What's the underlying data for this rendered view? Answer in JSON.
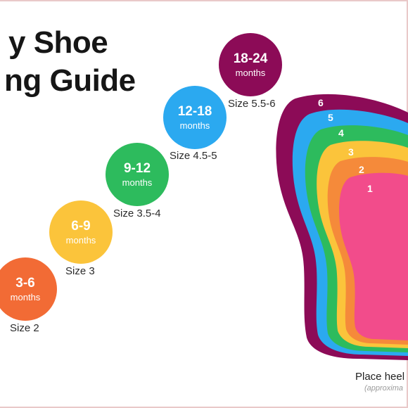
{
  "title": {
    "line1": "y Shoe",
    "line2": "ng Guide"
  },
  "ages": [
    {
      "range": "3-6",
      "unit": "months",
      "size": "Size 2",
      "color": "#f26b35"
    },
    {
      "range": "6-9",
      "unit": "months",
      "size": "Size 3",
      "color": "#fbc43b"
    },
    {
      "range": "9-12",
      "unit": "months",
      "size": "Size 3.5-4",
      "color": "#2dbb5d"
    },
    {
      "range": "12-18",
      "unit": "months",
      "size": "Size 4.5-5",
      "color": "#2ba9f0"
    },
    {
      "range": "18-24",
      "unit": "months",
      "size": "Size 5.5-6",
      "color": "#8c0b57"
    }
  ],
  "foot_layers": [
    {
      "number": "6",
      "color": "#8c0b57"
    },
    {
      "number": "5",
      "color": "#2ba9f0"
    },
    {
      "number": "4",
      "color": "#2dbb5d"
    },
    {
      "number": "3",
      "color": "#fbc43b"
    },
    {
      "number": "2",
      "color": "#f58a3a"
    },
    {
      "number": "1",
      "color": "#f24c8b"
    }
  ],
  "footer": {
    "heel": "Place heel",
    "approx": "(approxima"
  }
}
